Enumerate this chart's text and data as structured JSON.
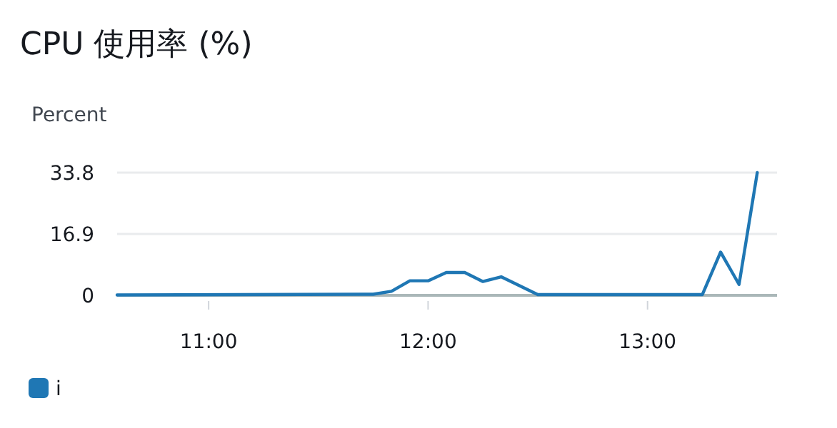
{
  "chart_data": {
    "type": "line",
    "title": "CPU 使用率 (%)",
    "ylabel": "Percent",
    "x": [
      10.583,
      11.75,
      11.833,
      11.917,
      12.0,
      12.083,
      12.167,
      12.25,
      12.333,
      12.5,
      13.25,
      13.333,
      13.417,
      13.5
    ],
    "series": [
      {
        "name": "i",
        "color": "#1f77b4",
        "values": [
          0.1,
          0.3,
          1.1,
          4,
          4,
          6.3,
          6.3,
          3.8,
          5.1,
          0.2,
          0.2,
          11.9,
          3,
          33.8
        ]
      }
    ],
    "xlim": [
      10.583,
      13.59
    ],
    "xticks": [
      {
        "value": 11,
        "label": "11:00"
      },
      {
        "value": 12,
        "label": "12:00"
      },
      {
        "value": 13,
        "label": "13:00"
      }
    ],
    "ylim": [
      0,
      33.8
    ],
    "yticks": [
      0,
      16.9,
      33.8
    ],
    "grid": "y",
    "legend": "bottom left",
    "marker": "none",
    "line_style": "solid"
  }
}
